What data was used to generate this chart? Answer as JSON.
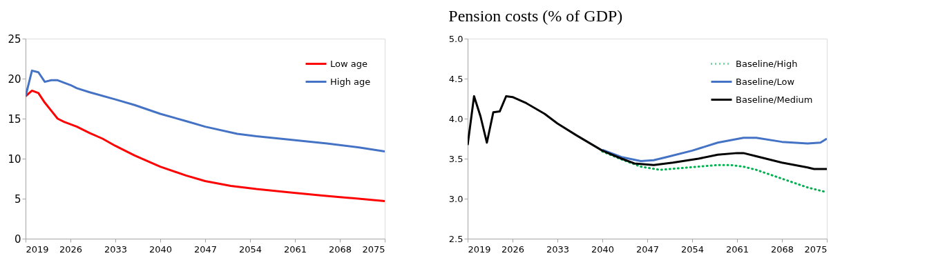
{
  "chart_data": [
    {
      "type": "line",
      "xlim": [
        2019,
        2075
      ],
      "xticks": [
        2019,
        2026,
        2033,
        2040,
        2047,
        2054,
        2061,
        2068,
        2075
      ],
      "ylim": [
        0,
        25
      ],
      "yticks": [
        0,
        5,
        10,
        15,
        20,
        25
      ],
      "grid": false,
      "legend": "top right",
      "line_style": "solid",
      "series": [
        {
          "name": "Low age",
          "color": "#ff0000",
          "x": [
            2019,
            2020,
            2021,
            2022,
            2023,
            2024,
            2025,
            2027,
            2029,
            2031,
            2033,
            2036,
            2040,
            2044,
            2047,
            2051,
            2055,
            2060,
            2065,
            2068,
            2075
          ],
          "values": [
            17.8,
            18.5,
            18.2,
            17.0,
            16.0,
            15.0,
            14.6,
            14.0,
            13.2,
            12.5,
            11.6,
            10.4,
            9.0,
            7.9,
            7.2,
            6.6,
            6.2,
            5.8,
            5.4,
            5.2,
            4.7
          ]
        },
        {
          "name": "High age",
          "color": "#4472c4",
          "x": [
            2019,
            2020,
            2021,
            2022,
            2023,
            2024,
            2026,
            2027,
            2029,
            2033,
            2036,
            2040,
            2044,
            2047,
            2052,
            2055,
            2060,
            2066,
            2071,
            2075
          ],
          "values": [
            17.8,
            21.0,
            20.8,
            19.6,
            19.8,
            19.8,
            19.2,
            18.8,
            18.3,
            17.4,
            16.7,
            15.6,
            14.7,
            14.0,
            13.1,
            12.8,
            12.4,
            11.9,
            11.4,
            10.9
          ]
        }
      ]
    },
    {
      "type": "line",
      "title": "Pension costs (% of GDP)",
      "xlim": [
        2019,
        2075
      ],
      "xticks": [
        2019,
        2026,
        2033,
        2040,
        2047,
        2054,
        2061,
        2068,
        2075
      ],
      "ylim": [
        2.5,
        5.0
      ],
      "yticks": [
        {
          "value": 2.5,
          "label": "2.5"
        },
        {
          "value": 3.0,
          "label": "3.0"
        },
        {
          "value": 3.5,
          "label": "3.5"
        },
        {
          "value": 4.0,
          "label": "4.0"
        },
        {
          "value": 4.5,
          "label": "4.5"
        },
        {
          "value": 5.0,
          "label": "5.0"
        }
      ],
      "grid": false,
      "legend": "top right",
      "series": [
        {
          "name": "Baseline/High",
          "color": "#00b050",
          "line_style": "dotted",
          "x": [
            2040,
            2043,
            2046,
            2049,
            2052,
            2055,
            2058,
            2060,
            2062,
            2064,
            2068,
            2072,
            2075
          ],
          "values": [
            3.59,
            3.49,
            3.4,
            3.36,
            3.38,
            3.4,
            3.42,
            3.42,
            3.4,
            3.36,
            3.25,
            3.14,
            3.08
          ]
        },
        {
          "name": "Baseline/Low",
          "color": "#4472c4",
          "line_style": "solid",
          "x": [
            2040,
            2043,
            2046,
            2048,
            2050,
            2054,
            2058,
            2062,
            2064,
            2068,
            2072,
            2074,
            2075
          ],
          "values": [
            3.61,
            3.52,
            3.47,
            3.48,
            3.52,
            3.6,
            3.7,
            3.76,
            3.76,
            3.71,
            3.69,
            3.7,
            3.75
          ]
        },
        {
          "name": "Baseline/Medium",
          "color": "#000000",
          "line_style": "solid",
          "x": [
            2019,
            2020,
            2021,
            2022,
            2023,
            2024,
            2025,
            2026,
            2028,
            2031,
            2033,
            2036,
            2040,
            2043,
            2045,
            2048,
            2051,
            2055,
            2058,
            2061,
            2062,
            2064,
            2068,
            2072,
            2073,
            2075
          ],
          "values": [
            3.67,
            4.28,
            4.03,
            3.7,
            4.08,
            4.09,
            4.28,
            4.27,
            4.2,
            4.06,
            3.94,
            3.79,
            3.6,
            3.5,
            3.44,
            3.42,
            3.45,
            3.5,
            3.55,
            3.57,
            3.57,
            3.53,
            3.45,
            3.39,
            3.37,
            3.37
          ]
        }
      ]
    }
  ]
}
